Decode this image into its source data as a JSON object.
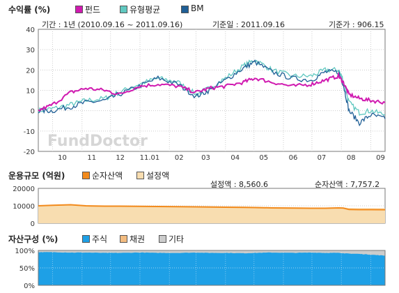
{
  "colors": {
    "fund": "#d01ab0",
    "peer_avg": "#60c8c0",
    "bm": "#1f5f96",
    "net_assets": "#f28a1c",
    "setup_amount": "#f8ddb0",
    "stock": "#1ea0e6",
    "bond": "#f3bc80",
    "other": "#cccccc"
  },
  "chart_data": [
    {
      "type": "line",
      "title": "수익률 (%)",
      "legend": [
        "펀드",
        "유형평균",
        "BM"
      ],
      "info": {
        "period": "기간 : 1년 (2010.09.16 ~ 2011.09.16)",
        "base_date": "기준일 : 2011.09.16",
        "base_price": "기준가 : 906.15"
      },
      "watermark": "FundDoctor",
      "ylim": [
        -20,
        40
      ],
      "yticks": [
        "40",
        "30",
        "20",
        "10",
        "0",
        "-10",
        "-20"
      ],
      "xticks": [
        "10",
        "11",
        "12",
        "11.01",
        "02",
        "03",
        "04",
        "05",
        "06",
        "07",
        "08",
        "09"
      ],
      "x": [
        "2010-09-16",
        "2010-10-01",
        "2010-10-20",
        "2010-11-05",
        "2010-11-25",
        "2010-12-10",
        "2010-12-31",
        "2011-01-20",
        "2011-02-10",
        "2011-03-01",
        "2011-03-15",
        "2011-04-01",
        "2011-04-20",
        "2011-05-02",
        "2011-05-20",
        "2011-06-10",
        "2011-06-30",
        "2011-07-15",
        "2011-07-29",
        "2011-08-03",
        "2011-08-09",
        "2011-08-20",
        "2011-09-01",
        "2011-09-16"
      ],
      "series": [
        {
          "name": "펀드",
          "values": [
            0,
            3,
            9,
            11,
            10,
            8,
            12,
            13,
            12,
            9,
            11,
            12,
            14,
            16,
            14,
            12,
            13,
            15,
            17,
            14,
            8,
            6,
            5,
            4
          ]
        },
        {
          "name": "유형평균",
          "values": [
            0,
            1,
            3,
            5,
            6,
            9,
            13,
            16,
            14,
            8,
            11,
            16,
            22,
            25,
            20,
            17,
            17,
            20,
            20,
            15,
            4,
            -1,
            0,
            -2
          ]
        },
        {
          "name": "BM",
          "values": [
            0,
            0,
            2,
            4,
            5,
            8,
            12,
            16,
            13,
            7,
            10,
            15,
            21,
            24,
            19,
            16,
            15,
            19,
            19,
            13,
            0,
            -6,
            -2,
            -4
          ]
        }
      ]
    },
    {
      "type": "area",
      "title": "운용규모 (억원)",
      "legend": [
        "순자산액",
        "설정액"
      ],
      "info": {
        "setup": "설정액 : 8,560.6",
        "net": "순자산액 : 7,757.2"
      },
      "ylim": [
        0,
        20000
      ],
      "yticks": [
        "20000",
        "10000",
        "0"
      ],
      "series": [
        {
          "name": "순자산액",
          "values": [
            10000,
            10300,
            10600,
            10000,
            9800,
            9800,
            9700,
            9600,
            9500,
            9400,
            9300,
            9200,
            9100,
            9000,
            8800,
            8700,
            8600,
            8600,
            8800,
            8700,
            7900,
            7800,
            7800,
            7757
          ]
        },
        {
          "name": "설정액",
          "values": [
            10000,
            10400,
            10800,
            10200,
            10000,
            10100,
            10000,
            9900,
            9800,
            9800,
            9700,
            9600,
            9500,
            9400,
            9200,
            9100,
            9000,
            9000,
            9100,
            9100,
            8700,
            8600,
            8600,
            8561
          ]
        }
      ]
    },
    {
      "type": "area",
      "title": "자산구성 (%)",
      "legend": [
        "주식",
        "채권",
        "기타"
      ],
      "ylim": [
        0,
        100
      ],
      "yticks": [
        "100%",
        "50%",
        "0%"
      ],
      "series": [
        {
          "name": "주식",
          "values": [
            95,
            95,
            94,
            94,
            93,
            93,
            94,
            93,
            93,
            94,
            93,
            93,
            92,
            93,
            94,
            93,
            94,
            93,
            93,
            92,
            91,
            90,
            88,
            85
          ]
        },
        {
          "name": "채권",
          "values": [
            0,
            0,
            0,
            0,
            0,
            0,
            0,
            0,
            0,
            0,
            0,
            0,
            0,
            0,
            0,
            0,
            0,
            0,
            0,
            0,
            0,
            0,
            0,
            0
          ]
        },
        {
          "name": "기타",
          "values": [
            5,
            5,
            6,
            6,
            7,
            7,
            6,
            7,
            7,
            6,
            7,
            7,
            8,
            7,
            6,
            7,
            6,
            7,
            7,
            8,
            9,
            10,
            12,
            15
          ]
        }
      ]
    }
  ]
}
